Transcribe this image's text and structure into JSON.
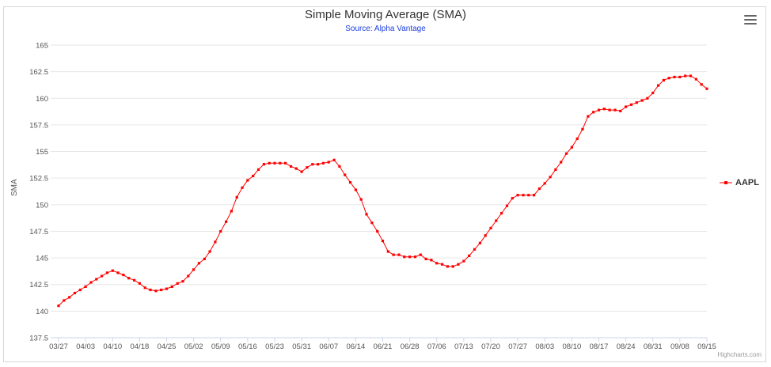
{
  "chart_data": {
    "type": "line",
    "title": "Simple Moving Average (SMA)",
    "subtitle": "Source: Alpha Vantage",
    "xlabel": "",
    "ylabel": "SMA",
    "ylim": [
      137.5,
      165
    ],
    "yticks": [
      "137.5",
      "140",
      "142.5",
      "145",
      "147.5",
      "150",
      "152.5",
      "155",
      "157.5",
      "160",
      "162.5",
      "165"
    ],
    "xticks": [
      "03/27",
      "04/03",
      "04/10",
      "04/18",
      "04/25",
      "05/02",
      "05/09",
      "05/16",
      "05/23",
      "05/31",
      "06/07",
      "06/14",
      "06/21",
      "06/28",
      "07/06",
      "07/13",
      "07/20",
      "07/27",
      "08/03",
      "08/10",
      "08/17",
      "08/24",
      "08/31",
      "09/08",
      "09/15"
    ],
    "grid": true,
    "legend_position": "right",
    "series": [
      {
        "name": "AAPL",
        "color": "#ff0000",
        "values": [
          140.5,
          141.0,
          141.3,
          141.7,
          142.0,
          142.3,
          142.7,
          143.0,
          143.3,
          143.6,
          143.8,
          143.6,
          143.4,
          143.1,
          142.9,
          142.6,
          142.2,
          142.0,
          141.9,
          142.0,
          142.1,
          142.3,
          142.6,
          142.8,
          143.3,
          143.9,
          144.5,
          144.9,
          145.6,
          146.5,
          147.5,
          148.4,
          149.4,
          150.7,
          151.6,
          152.3,
          152.7,
          153.3,
          153.8,
          153.9,
          153.9,
          153.9,
          153.9,
          153.6,
          153.4,
          153.1,
          153.5,
          153.8,
          153.8,
          153.9,
          154.0,
          154.2,
          153.6,
          152.8,
          152.1,
          151.4,
          150.5,
          149.1,
          148.3,
          147.5,
          146.6,
          145.6,
          145.3,
          145.3,
          145.1,
          145.1,
          145.1,
          145.3,
          144.9,
          144.8,
          144.5,
          144.4,
          144.2,
          144.2,
          144.4,
          144.7,
          145.2,
          145.8,
          146.4,
          147.1,
          147.8,
          148.5,
          149.2,
          149.9,
          150.6,
          150.9,
          150.9,
          150.9,
          150.9,
          151.5,
          152.0,
          152.6,
          153.3,
          154.0,
          154.8,
          155.4,
          156.2,
          157.1,
          158.3,
          158.7,
          158.9,
          159.0,
          158.9,
          158.9,
          158.8,
          159.2,
          159.4,
          159.6,
          159.8,
          160.0,
          160.5,
          161.2,
          161.7,
          161.9,
          162.0,
          162.0,
          162.1,
          162.1,
          161.8,
          161.3,
          160.9
        ]
      }
    ]
  },
  "credits": "Highcharts.com"
}
